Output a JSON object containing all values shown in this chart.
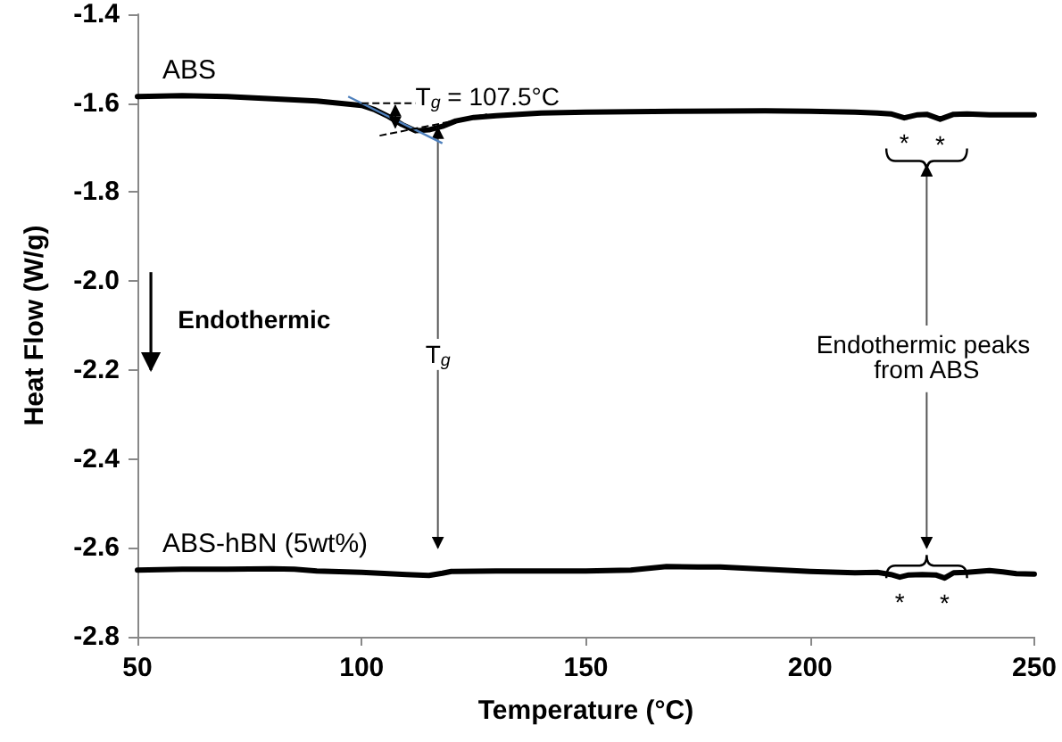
{
  "chart_data": {
    "type": "line",
    "xlabel": "Temperature (°C)",
    "ylabel": "Heat Flow (W/g)",
    "series": [
      {
        "name": "ABS",
        "color": "#000000",
        "x": [
          50,
          60,
          70,
          80,
          90,
          95,
          100,
          103,
          106,
          109,
          112,
          115,
          118,
          121,
          125,
          130,
          140,
          150,
          170,
          190,
          200,
          210,
          215,
          218,
          221,
          224,
          226,
          229,
          232,
          235,
          240,
          245,
          250
        ],
        "values": [
          -1.585,
          -1.583,
          -1.585,
          -1.59,
          -1.595,
          -1.6,
          -1.605,
          -1.615,
          -1.63,
          -1.648,
          -1.662,
          -1.66,
          -1.652,
          -1.64,
          -1.632,
          -1.628,
          -1.622,
          -1.62,
          -1.618,
          -1.617,
          -1.618,
          -1.62,
          -1.622,
          -1.624,
          -1.633,
          -1.626,
          -1.625,
          -1.636,
          -1.625,
          -1.624,
          -1.626,
          -1.626,
          -1.626
        ]
      },
      {
        "name": "ABS-hBN (5wt%)",
        "color": "#000000",
        "x": [
          50,
          60,
          70,
          80,
          85,
          90,
          100,
          110,
          115,
          118,
          120,
          130,
          150,
          160,
          165,
          168,
          175,
          180,
          190,
          200,
          210,
          215,
          218,
          220,
          222,
          225,
          228,
          230,
          232,
          235,
          240,
          243,
          246,
          250
        ],
        "values": [
          -2.65,
          -2.648,
          -2.648,
          -2.647,
          -2.648,
          -2.652,
          -2.655,
          -2.66,
          -2.662,
          -2.657,
          -2.653,
          -2.652,
          -2.652,
          -2.65,
          -2.645,
          -2.642,
          -2.643,
          -2.643,
          -2.648,
          -2.653,
          -2.656,
          -2.655,
          -2.66,
          -2.666,
          -2.661,
          -2.66,
          -2.661,
          -2.668,
          -2.656,
          -2.655,
          -2.651,
          -2.654,
          -2.658,
          -2.659
        ]
      }
    ],
    "xlim": [
      50,
      250
    ],
    "xticks": [
      50,
      100,
      150,
      200,
      250
    ],
    "ylim": [
      -2.8,
      -1.4
    ],
    "yticks": [
      -2.8,
      -2.6,
      -2.4,
      -2.2,
      {
        "value": -2,
        "label": "-2.0"
      },
      -1.8,
      -1.6,
      -1.4
    ],
    "annotations": [
      "T$_{g}$ = 107.5°C",
      "Endothermic",
      {
        "text": "T$_{g}$",
        "x": 117,
        "y": -1.655
      },
      "Endothermic peaks from ABS",
      {
        "text": "*",
        "x": 221,
        "y": -1.633
      },
      {
        "text": "*",
        "x": 229,
        "y": -1.636
      },
      {
        "text": "*",
        "x": 220,
        "y": -2.666
      },
      {
        "text": "*",
        "x": 230,
        "y": -2.668
      }
    ],
    "grid": false,
    "legend": false,
    "marker": "none",
    "line_style": "solid"
  }
}
